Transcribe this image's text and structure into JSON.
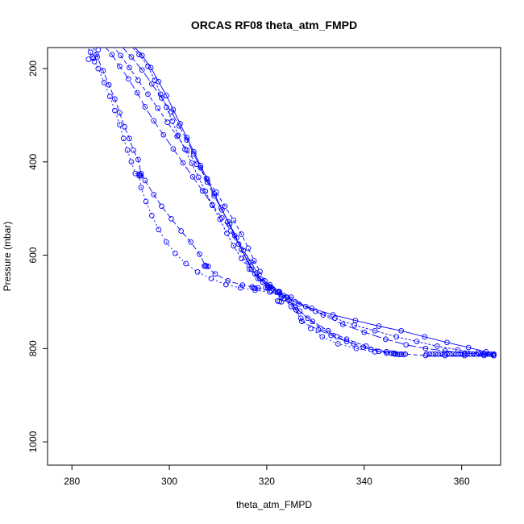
{
  "chart_data": {
    "type": "scatter",
    "title": "ORCAS RF08 theta_atm_FMPD",
    "xlabel": "theta_atm_FMPD",
    "ylabel": "Pressure (mbar)",
    "xlim": [
      275,
      368
    ],
    "ylim": [
      1050,
      155
    ],
    "y_axis_inverted": true,
    "grid": false,
    "legend": "none",
    "x_ticks": [
      280,
      300,
      320,
      340,
      360
    ],
    "y_ticks": [
      200,
      400,
      600,
      800,
      1000
    ],
    "colors": {
      "series": "#0000ff",
      "axis": "#000000"
    },
    "marker": "open-circle",
    "series": [
      {
        "dash": "2,3",
        "points": [
          [
            283.0,
            150
          ],
          [
            284.2,
            175
          ],
          [
            285.4,
            200
          ],
          [
            286.6,
            230
          ],
          [
            287.8,
            260
          ],
          [
            288.8,
            290
          ],
          [
            289.8,
            320
          ],
          [
            290.6,
            350
          ],
          [
            291.4,
            375
          ],
          [
            292.2,
            400
          ],
          [
            293.0,
            425
          ],
          [
            293.8,
            430
          ],
          [
            294.2,
            455
          ],
          [
            295.2,
            485
          ],
          [
            296.4,
            515
          ],
          [
            297.8,
            545
          ],
          [
            299.4,
            572
          ],
          [
            301.2,
            596
          ],
          [
            303.4,
            618
          ],
          [
            305.8,
            636
          ],
          [
            308.6,
            650
          ],
          [
            311.6,
            663
          ],
          [
            314.6,
            670
          ],
          [
            317.6,
            675
          ],
          [
            320.6,
            679
          ],
          [
            323.0,
            690
          ],
          [
            325.0,
            710
          ],
          [
            327.0,
            735
          ],
          [
            329.0,
            757
          ],
          [
            331.4,
            775
          ],
          [
            334.6,
            790
          ],
          [
            338.4,
            800
          ],
          [
            342.2,
            807
          ],
          [
            345.6,
            810
          ]
        ]
      },
      {
        "dash": "7,3",
        "points": [
          [
            284.2,
            150
          ],
          [
            285.2,
            175
          ],
          [
            286.4,
            205
          ],
          [
            287.6,
            235
          ],
          [
            288.8,
            265
          ],
          [
            289.8,
            295
          ],
          [
            290.8,
            325
          ],
          [
            291.8,
            350
          ],
          [
            292.6,
            375
          ],
          [
            293.6,
            395
          ],
          [
            294.2,
            425
          ],
          [
            295.0,
            440
          ],
          [
            296.8,
            470
          ],
          [
            298.4,
            495
          ],
          [
            300.4,
            522
          ],
          [
            302.4,
            548
          ],
          [
            304.4,
            572
          ],
          [
            306.2,
            598
          ],
          [
            307.4,
            622
          ],
          [
            309.4,
            640
          ],
          [
            312.0,
            655
          ],
          [
            315.0,
            664
          ],
          [
            318.2,
            670
          ],
          [
            321.0,
            677
          ],
          [
            323.4,
            693
          ],
          [
            325.8,
            712
          ],
          [
            328.4,
            735
          ],
          [
            331.0,
            757
          ],
          [
            334.4,
            775
          ],
          [
            337.8,
            790
          ],
          [
            341.4,
            802
          ],
          [
            344.6,
            810
          ]
        ]
      },
      {
        "dash": "10,4",
        "points": [
          [
            286.5,
            150
          ],
          [
            288.2,
            170
          ],
          [
            289.8,
            195
          ],
          [
            291.6,
            222
          ],
          [
            293.4,
            252
          ],
          [
            295.0,
            282
          ],
          [
            296.8,
            312
          ],
          [
            298.8,
            342
          ],
          [
            300.8,
            372
          ],
          [
            302.8,
            402
          ],
          [
            304.8,
            432
          ],
          [
            306.8,
            462
          ],
          [
            308.8,
            492
          ],
          [
            310.8,
            520
          ],
          [
            312.6,
            548
          ],
          [
            314.2,
            576
          ],
          [
            315.6,
            604
          ],
          [
            316.8,
            630
          ],
          [
            318.6,
            650
          ],
          [
            320.6,
            663
          ],
          [
            322.6,
            678
          ],
          [
            324.4,
            695
          ],
          [
            326.0,
            717
          ],
          [
            327.2,
            742
          ],
          [
            330.6,
            760
          ],
          [
            333.2,
            772
          ],
          [
            336.4,
            785
          ],
          [
            339.8,
            797
          ],
          [
            343.0,
            806
          ],
          [
            346.2,
            810
          ]
        ]
      },
      {
        "dash": "5,3",
        "points": [
          [
            288.3,
            150
          ],
          [
            290.0,
            172
          ],
          [
            291.8,
            198
          ],
          [
            293.6,
            225
          ],
          [
            295.6,
            255
          ],
          [
            297.6,
            285
          ],
          [
            299.6,
            315
          ],
          [
            301.6,
            345
          ],
          [
            303.6,
            375
          ],
          [
            305.6,
            405
          ],
          [
            307.6,
            435
          ],
          [
            309.6,
            465
          ],
          [
            311.4,
            495
          ],
          [
            313.2,
            525
          ],
          [
            314.8,
            555
          ],
          [
            316.2,
            585
          ],
          [
            317.4,
            612
          ],
          [
            318.6,
            635
          ],
          [
            319.6,
            655
          ],
          [
            320.8,
            668
          ],
          [
            322.6,
            680
          ],
          [
            324.6,
            697
          ],
          [
            326.8,
            720
          ],
          [
            329.4,
            742
          ],
          [
            332.6,
            762
          ],
          [
            336.4,
            780
          ],
          [
            340.4,
            795
          ],
          [
            344.6,
            807
          ],
          [
            348.4,
            812
          ],
          [
            352.6,
            815
          ],
          [
            356.6,
            815
          ],
          [
            360.6,
            815
          ],
          [
            364.6,
            815
          ],
          [
            366.6,
            815
          ]
        ]
      },
      {
        "dash": "12,3",
        "points": [
          [
            290.0,
            150
          ],
          [
            292.2,
            175
          ],
          [
            294.4,
            203
          ],
          [
            296.4,
            233
          ],
          [
            298.4,
            263
          ],
          [
            300.4,
            293
          ],
          [
            302.0,
            323
          ],
          [
            303.6,
            353
          ],
          [
            305.0,
            383
          ],
          [
            306.4,
            413
          ],
          [
            307.8,
            443
          ],
          [
            309.2,
            473
          ],
          [
            310.8,
            503
          ],
          [
            312.4,
            533
          ],
          [
            313.8,
            563
          ],
          [
            315.2,
            590
          ],
          [
            316.8,
            615
          ],
          [
            318.0,
            638
          ],
          [
            319.2,
            658
          ],
          [
            320.4,
            668
          ],
          [
            322.4,
            680
          ],
          [
            325.0,
            690
          ],
          [
            328.0,
            710
          ],
          [
            331.6,
            728
          ],
          [
            335.6,
            748
          ],
          [
            340.0,
            765
          ],
          [
            344.4,
            780
          ],
          [
            348.6,
            792
          ],
          [
            352.6,
            800
          ],
          [
            356.6,
            805
          ],
          [
            360.6,
            810
          ],
          [
            364.6,
            812
          ],
          [
            366.6,
            815
          ]
        ]
      },
      {
        "dash": "3,2",
        "points": [
          [
            292.0,
            150
          ],
          [
            293.8,
            170
          ],
          [
            295.6,
            195
          ],
          [
            297.0,
            225
          ],
          [
            298.2,
            255
          ],
          [
            299.4,
            283
          ],
          [
            300.6,
            313
          ],
          [
            301.8,
            343
          ],
          [
            303.2,
            373
          ],
          [
            304.6,
            403
          ],
          [
            306.0,
            433
          ],
          [
            307.4,
            463
          ],
          [
            308.8,
            493
          ],
          [
            310.4,
            523
          ],
          [
            311.8,
            553
          ],
          [
            313.2,
            580
          ],
          [
            314.8,
            607
          ],
          [
            316.4,
            630
          ],
          [
            318.2,
            650
          ],
          [
            320.2,
            665
          ],
          [
            322.2,
            678
          ],
          [
            324.2,
            690
          ],
          [
            326.6,
            705
          ],
          [
            330.0,
            720
          ],
          [
            334.0,
            735
          ],
          [
            338.0,
            750
          ],
          [
            342.2,
            762
          ],
          [
            346.6,
            775
          ],
          [
            350.8,
            785
          ],
          [
            355.0,
            795
          ],
          [
            359.2,
            803
          ],
          [
            363.4,
            809
          ],
          [
            366.4,
            813
          ]
        ]
      },
      {
        "dash": "",
        "points": [
          [
            292.5,
            150
          ],
          [
            294.4,
            172
          ],
          [
            296.2,
            198
          ],
          [
            297.8,
            228
          ],
          [
            299.4,
            258
          ],
          [
            300.8,
            288
          ],
          [
            302.2,
            318
          ],
          [
            303.6,
            348
          ],
          [
            305.0,
            378
          ],
          [
            306.4,
            408
          ],
          [
            307.8,
            438
          ],
          [
            309.2,
            468
          ],
          [
            310.6,
            498
          ],
          [
            312.0,
            528
          ],
          [
            313.4,
            558
          ],
          [
            314.8,
            588
          ],
          [
            316.2,
            615
          ],
          [
            317.6,
            640
          ],
          [
            319.2,
            658
          ],
          [
            321.2,
            672
          ],
          [
            323.4,
            686
          ],
          [
            325.8,
            700
          ],
          [
            329.2,
            714
          ],
          [
            333.6,
            728
          ],
          [
            338.2,
            740
          ],
          [
            343.0,
            752
          ],
          [
            347.6,
            762
          ],
          [
            352.4,
            775
          ],
          [
            357.0,
            787
          ],
          [
            361.4,
            798
          ],
          [
            365.0,
            807
          ],
          [
            366.6,
            812
          ]
        ]
      }
    ],
    "dense_points": [
      [
        345.6,
        810
      ],
      [
        346.0,
        811
      ],
      [
        346.4,
        812
      ],
      [
        346.8,
        812
      ],
      [
        347.2,
        813
      ],
      [
        347.6,
        812
      ],
      [
        348.0,
        813
      ],
      [
        348.4,
        812
      ],
      [
        352.8,
        812
      ],
      [
        353.4,
        812
      ],
      [
        354.0,
        812
      ],
      [
        354.6,
        812
      ],
      [
        355.2,
        812
      ],
      [
        355.8,
        812
      ],
      [
        356.4,
        812
      ],
      [
        357.0,
        812
      ],
      [
        357.6,
        812
      ],
      [
        358.2,
        812
      ],
      [
        358.8,
        812
      ],
      [
        359.4,
        812
      ],
      [
        360.0,
        812
      ],
      [
        360.6,
        812
      ],
      [
        361.2,
        812
      ],
      [
        361.8,
        812
      ],
      [
        362.4,
        812
      ],
      [
        363.0,
        812
      ],
      [
        363.6,
        812
      ],
      [
        364.2,
        812
      ],
      [
        364.8,
        812
      ],
      [
        365.4,
        812
      ],
      [
        366.0,
        812
      ],
      [
        366.6,
        812
      ],
      [
        317.0,
        668
      ],
      [
        317.3,
        670
      ],
      [
        317.6,
        671
      ],
      [
        319.8,
        670
      ],
      [
        320.2,
        669
      ],
      [
        320.6,
        670
      ],
      [
        322.2,
        698
      ],
      [
        322.6,
        699
      ],
      [
        323.0,
        700
      ],
      [
        307.2,
        623
      ],
      [
        307.6,
        624
      ],
      [
        308.0,
        624
      ],
      [
        293.8,
        426
      ],
      [
        294.0,
        428
      ],
      [
        294.2,
        430
      ],
      [
        283.8,
        165
      ],
      [
        284.4,
        178
      ],
      [
        285.0,
        170
      ],
      [
        284.6,
        185
      ],
      [
        285.4,
        160
      ],
      [
        283.4,
        180
      ]
    ]
  }
}
